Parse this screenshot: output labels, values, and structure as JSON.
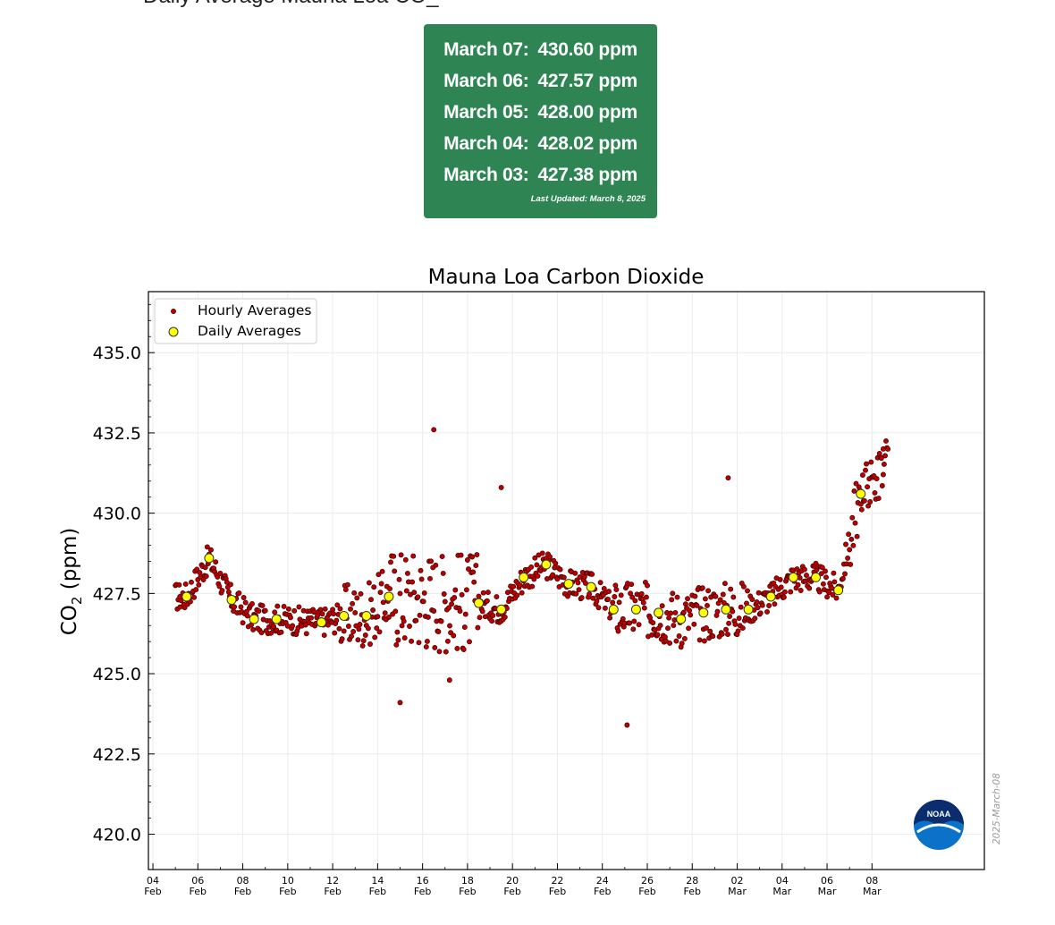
{
  "header": {
    "heading_text": "Daily Average Mauna Loa CO_"
  },
  "readings": {
    "items": [
      {
        "date": "March 07:",
        "value": "430.60 ppm"
      },
      {
        "date": "March 06:",
        "value": "427.57 ppm"
      },
      {
        "date": "March 05:",
        "value": "428.00 ppm"
      },
      {
        "date": "March 04:",
        "value": "428.02 ppm"
      },
      {
        "date": "March 03:",
        "value": "427.38 ppm"
      }
    ],
    "last_updated": "Last Updated: March 8, 2025",
    "background_color": "#2e8553"
  },
  "chart_data": {
    "type": "scatter",
    "title": "Mauna Loa Carbon Dioxide",
    "ylabel_main": "CO",
    "ylabel_sub": "2",
    "ylabel_unit": " (ppm)",
    "ylim": [
      418.9,
      436.9
    ],
    "xlim": [
      3.8,
      41.0
    ],
    "grid": true,
    "legend_position": "top-left",
    "y_ticks": [
      "420.0",
      "422.5",
      "425.0",
      "427.5",
      "430.0",
      "432.5",
      "435.0"
    ],
    "y_tick_values": [
      420.0,
      422.5,
      425.0,
      427.5,
      430.0,
      432.5,
      435.0
    ],
    "x_ticks": [
      {
        "x": 4,
        "day": "04",
        "month": "Feb"
      },
      {
        "x": 6,
        "day": "06",
        "month": "Feb"
      },
      {
        "x": 8,
        "day": "08",
        "month": "Feb"
      },
      {
        "x": 10,
        "day": "10",
        "month": "Feb"
      },
      {
        "x": 12,
        "day": "12",
        "month": "Feb"
      },
      {
        "x": 14,
        "day": "14",
        "month": "Feb"
      },
      {
        "x": 16,
        "day": "16",
        "month": "Feb"
      },
      {
        "x": 18,
        "day": "18",
        "month": "Feb"
      },
      {
        "x": 20,
        "day": "20",
        "month": "Feb"
      },
      {
        "x": 22,
        "day": "22",
        "month": "Feb"
      },
      {
        "x": 24,
        "day": "24",
        "month": "Feb"
      },
      {
        "x": 26,
        "day": "26",
        "month": "Feb"
      },
      {
        "x": 28,
        "day": "28",
        "month": "Feb"
      },
      {
        "x": 30,
        "day": "02",
        "month": "Mar"
      },
      {
        "x": 32,
        "day": "04",
        "month": "Mar"
      },
      {
        "x": 34,
        "day": "06",
        "month": "Mar"
      },
      {
        "x": 36,
        "day": "08",
        "month": "Mar"
      }
    ],
    "x_note": "x values are Feb day numbers; 30 = Mar 02, 36 = Mar 08",
    "series": [
      {
        "name": "Hourly Averages",
        "color": "#c00000",
        "points_note": "random hourly scatter generated around daily values by script",
        "anchors": [
          {
            "x": 5.2,
            "y": 427.4
          },
          {
            "x": 6.5,
            "y": 428.6
          },
          {
            "x": 7.5,
            "y": 427.3
          },
          {
            "x": 8.5,
            "y": 426.7
          },
          {
            "x": 9.5,
            "y": 426.7
          },
          {
            "x": 11.5,
            "y": 426.6
          },
          {
            "x": 12.5,
            "y": 426.8
          },
          {
            "x": 13.5,
            "y": 426.8
          },
          {
            "x": 14.5,
            "y": 427.4
          },
          {
            "x": 15.0,
            "y": 424.1
          },
          {
            "x": 16.5,
            "y": 432.6
          },
          {
            "x": 17.2,
            "y": 424.8
          },
          {
            "x": 19.5,
            "y": 430.8
          },
          {
            "x": 21.5,
            "y": 428.4
          },
          {
            "x": 25.1,
            "y": 423.4
          },
          {
            "x": 29.6,
            "y": 431.1
          },
          {
            "x": 36.5,
            "y": 432.0
          }
        ]
      },
      {
        "name": "Daily Averages",
        "color": "#ffff00",
        "points": [
          {
            "x": 5.5,
            "y": 427.4
          },
          {
            "x": 6.5,
            "y": 428.6
          },
          {
            "x": 7.5,
            "y": 427.3
          },
          {
            "x": 8.5,
            "y": 426.7
          },
          {
            "x": 9.5,
            "y": 426.7
          },
          {
            "x": 11.5,
            "y": 426.6
          },
          {
            "x": 12.5,
            "y": 426.8
          },
          {
            "x": 13.5,
            "y": 426.8
          },
          {
            "x": 14.5,
            "y": 427.4
          },
          {
            "x": 18.5,
            "y": 427.2
          },
          {
            "x": 19.5,
            "y": 427.0
          },
          {
            "x": 20.5,
            "y": 428.0
          },
          {
            "x": 21.5,
            "y": 428.4
          },
          {
            "x": 22.5,
            "y": 427.8
          },
          {
            "x": 23.5,
            "y": 427.7
          },
          {
            "x": 24.5,
            "y": 427.0
          },
          {
            "x": 25.5,
            "y": 427.0
          },
          {
            "x": 26.5,
            "y": 426.9
          },
          {
            "x": 27.5,
            "y": 426.7
          },
          {
            "x": 28.5,
            "y": 426.9
          },
          {
            "x": 29.5,
            "y": 427.0
          },
          {
            "x": 30.5,
            "y": 427.0
          },
          {
            "x": 31.5,
            "y": 427.4
          },
          {
            "x": 32.5,
            "y": 428.0
          },
          {
            "x": 33.5,
            "y": 428.0
          },
          {
            "x": 34.5,
            "y": 427.6
          },
          {
            "x": 35.5,
            "y": 430.6
          }
        ]
      }
    ],
    "watermark": "2025-March-08",
    "logo_text": "NOAA"
  }
}
